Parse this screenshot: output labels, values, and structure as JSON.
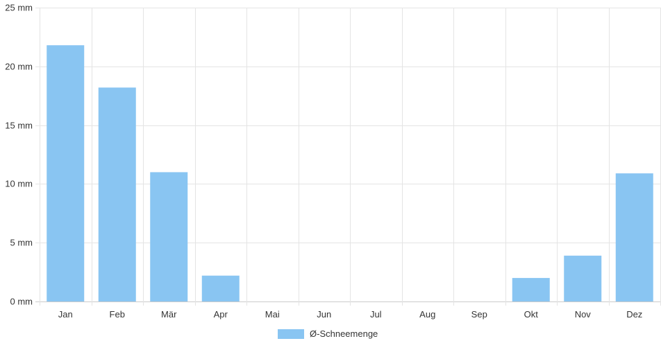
{
  "chart_data": {
    "type": "bar",
    "categories": [
      "Jan",
      "Feb",
      "Mär",
      "Apr",
      "Mai",
      "Jun",
      "Jul",
      "Aug",
      "Sep",
      "Okt",
      "Nov",
      "Dez"
    ],
    "series": [
      {
        "name": "Ø-Schneemenge",
        "color": "#89c5f2",
        "values": [
          21.8,
          18.2,
          11.0,
          2.2,
          0,
          0,
          0,
          0,
          0,
          2.0,
          3.9,
          10.9
        ]
      }
    ],
    "ylim": [
      0,
      25
    ],
    "yticks": [
      0,
      5,
      10,
      15,
      20,
      25
    ],
    "ytick_labels": [
      "0 mm",
      "5 mm",
      "10 mm",
      "15 mm",
      "20 mm",
      "25 mm"
    ],
    "grid": true,
    "legend_position": "bottom-center",
    "title": "",
    "xlabel": "",
    "ylabel": ""
  }
}
